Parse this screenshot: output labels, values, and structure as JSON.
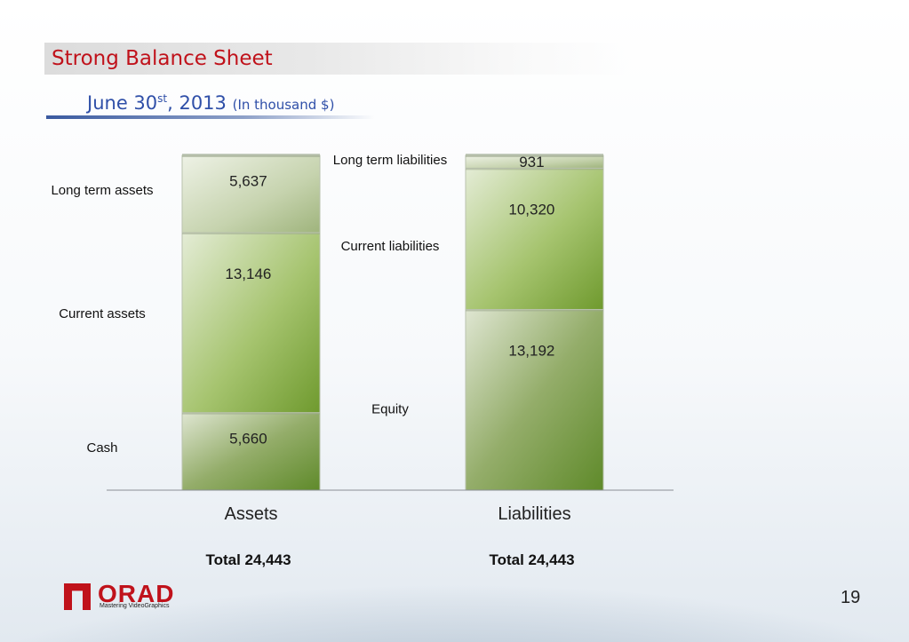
{
  "header": {
    "title": "Strong Balance Sheet",
    "subtitle_main": "June 30",
    "subtitle_sup": "st",
    "subtitle_year": ", 2013",
    "subtitle_unit": "(In thousand $)"
  },
  "chart_data": {
    "type": "bar",
    "stacked": true,
    "categories": [
      "Assets",
      "Liabilities"
    ],
    "series": [
      {
        "name": "Cash",
        "category": "Assets",
        "value": 5660,
        "label": "5,660"
      },
      {
        "name": "Current assets",
        "category": "Assets",
        "value": 13146,
        "label": "13,146"
      },
      {
        "name": "Long term assets",
        "category": "Assets",
        "value": 5637,
        "label": "5,637"
      },
      {
        "name": "Equity",
        "category": "Liabilities",
        "value": 13192,
        "label": "13,192"
      },
      {
        "name": "Current liabilities",
        "category": "Liabilities",
        "value": 10320,
        "label": "10,320"
      },
      {
        "name": "Long term liabilities",
        "category": "Liabilities",
        "value": 931,
        "label": "931"
      }
    ],
    "totals": [
      {
        "category": "Assets",
        "label": "Total 24,443",
        "value": 24443
      },
      {
        "category": "Liabilities",
        "label": "Total 24,443",
        "value": 24443
      }
    ],
    "ylim": [
      0,
      24443
    ],
    "colors": {
      "light": "#c9d6b4",
      "mid": "#8fb35a",
      "dark": "#6a8f3a",
      "fill_top": "#eef3e6"
    }
  },
  "footer": {
    "logo_word": "ORAD",
    "logo_tagline": "Mastering VideoGraphics",
    "logo_icon": "orad-logo-icon",
    "page_number": "19"
  }
}
